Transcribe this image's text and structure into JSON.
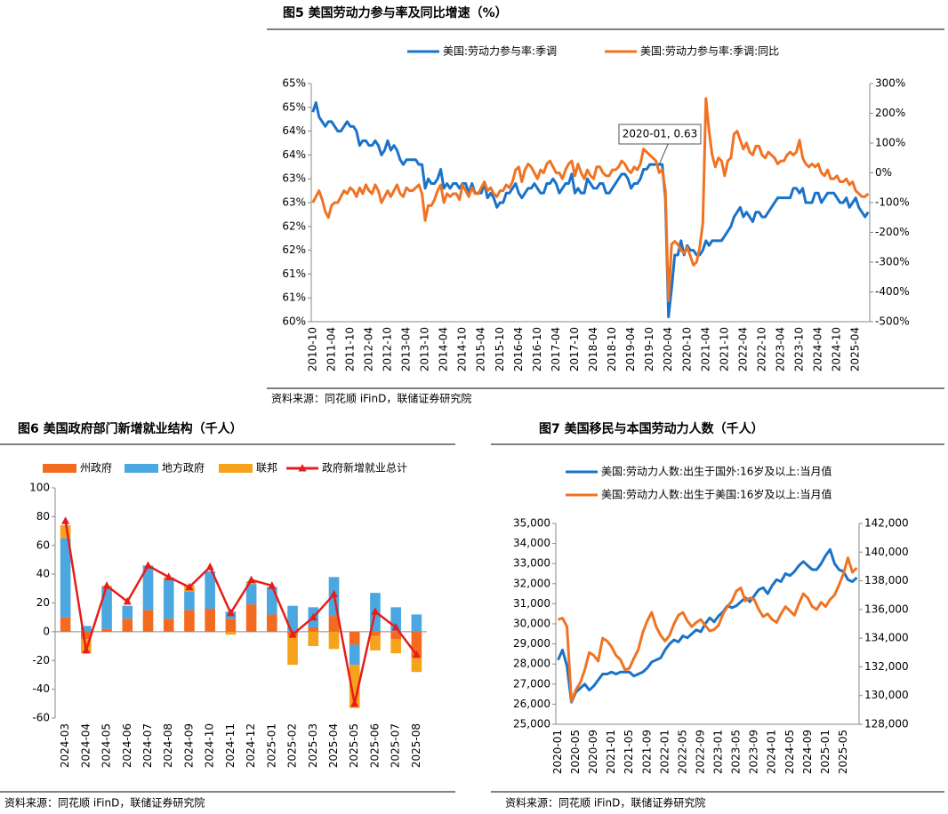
{
  "chart_data": [
    {
      "type": "line",
      "title": "图5  美国劳动力参与率及同比增速（%）",
      "source": "资料来源：同花顺 iFinD，联储证券研究院",
      "annotations": [
        {
          "text": "2020-01, 0.63"
        }
      ],
      "categories": [
        "2010-10",
        null,
        null,
        null,
        null,
        null,
        "2011-04",
        null,
        null,
        null,
        null,
        null,
        "2011-10",
        null,
        null,
        null,
        null,
        null,
        "2012-04",
        null,
        null,
        null,
        null,
        null,
        "2012-10",
        null,
        null,
        null,
        null,
        null,
        "2013-04",
        null,
        null,
        null,
        null,
        null,
        "2013-10",
        null,
        null,
        null,
        null,
        null,
        "2014-04",
        null,
        null,
        null,
        null,
        null,
        "2014-10",
        null,
        null,
        null,
        null,
        null,
        "2015-04",
        null,
        null,
        null,
        null,
        null,
        "2015-10",
        null,
        null,
        null,
        null,
        null,
        "2016-04",
        null,
        null,
        null,
        null,
        null,
        "2016-10",
        null,
        null,
        null,
        null,
        null,
        "2017-04",
        null,
        null,
        null,
        null,
        null,
        "2017-10",
        null,
        null,
        null,
        null,
        null,
        "2018-04",
        null,
        null,
        null,
        null,
        null,
        "2018-10",
        null,
        null,
        null,
        null,
        null,
        "2019-04",
        null,
        null,
        null,
        null,
        null,
        "2019-10",
        null,
        null,
        null,
        null,
        null,
        "2020-04",
        null,
        null,
        null,
        null,
        null,
        "2020-10",
        null,
        null,
        null,
        null,
        null,
        "2021-04",
        null,
        null,
        null,
        null,
        null,
        "2021-10",
        null,
        null,
        null,
        null,
        null,
        "2022-04",
        null,
        null,
        null,
        null,
        null,
        "2022-10",
        null,
        null,
        null,
        null,
        null,
        "2023-04",
        null,
        null,
        null,
        null,
        null,
        "2023-10",
        null,
        null,
        null,
        null,
        null,
        "2024-04",
        null,
        null,
        null,
        null,
        null,
        "2024-10",
        null,
        null,
        null,
        null,
        null,
        "2025-04",
        null,
        null,
        null,
        null
      ],
      "series": [
        {
          "name": "美国:劳动力参与率:季调",
          "color": "#1a73c8",
          "values": [
            64.4,
            64.6,
            64.3,
            64.2,
            64.1,
            64.2,
            64.2,
            64.1,
            64.0,
            64.0,
            64.1,
            64.2,
            64.1,
            64.1,
            64.0,
            63.7,
            63.8,
            63.8,
            63.7,
            63.7,
            63.8,
            63.7,
            63.5,
            63.6,
            63.8,
            63.6,
            63.7,
            63.6,
            63.4,
            63.3,
            63.4,
            63.4,
            63.4,
            63.4,
            63.3,
            63.3,
            62.8,
            63.0,
            62.9,
            62.9,
            63.0,
            63.2,
            62.8,
            62.9,
            62.8,
            62.9,
            62.9,
            62.8,
            62.9,
            62.9,
            62.7,
            62.9,
            62.7,
            62.7,
            62.7,
            62.9,
            62.6,
            62.7,
            62.6,
            62.4,
            62.5,
            62.5,
            62.7,
            62.7,
            62.8,
            62.9,
            62.7,
            62.6,
            62.7,
            62.8,
            62.8,
            62.9,
            62.8,
            62.7,
            62.7,
            62.9,
            62.9,
            63.0,
            62.9,
            62.7,
            62.8,
            62.9,
            62.9,
            63.1,
            62.7,
            62.8,
            62.7,
            62.7,
            63.0,
            62.9,
            62.8,
            62.8,
            62.9,
            62.9,
            62.7,
            62.7,
            62.8,
            62.9,
            63.0,
            63.1,
            63.1,
            63.0,
            62.8,
            62.9,
            62.9,
            63.0,
            63.2,
            63.2,
            63.3,
            63.3,
            63.3,
            63.3,
            63.3,
            62.6,
            60.1,
            60.7,
            61.4,
            61.4,
            61.7,
            61.4,
            61.6,
            61.5,
            61.5,
            61.4,
            61.4,
            61.5,
            61.7,
            61.6,
            61.7,
            61.7,
            61.7,
            61.7,
            61.8,
            61.9,
            62.0,
            62.2,
            62.3,
            62.4,
            62.2,
            62.3,
            62.2,
            62.1,
            62.3,
            62.3,
            62.2,
            62.2,
            62.3,
            62.4,
            62.5,
            62.6,
            62.6,
            62.6,
            62.6,
            62.6,
            62.8,
            62.8,
            62.7,
            62.8,
            62.5,
            62.5,
            62.5,
            62.7,
            62.7,
            62.5,
            62.6,
            62.7,
            62.7,
            62.7,
            62.6,
            62.5,
            62.5,
            62.6,
            62.4,
            62.5,
            62.6,
            62.4,
            62.3,
            62.2,
            62.3
          ]
        },
        {
          "name": "美国:劳动力参与率:季调:同比",
          "color": "#f07323",
          "axis": "y2",
          "values": [
            -100,
            -80,
            -60,
            -90,
            -130,
            -150,
            -110,
            -100,
            -100,
            -80,
            -60,
            -70,
            -50,
            -60,
            -80,
            -50,
            -70,
            -40,
            -60,
            -70,
            -40,
            -60,
            -100,
            -80,
            -60,
            -80,
            -60,
            -40,
            -70,
            -80,
            -50,
            -60,
            -60,
            -50,
            -40,
            -70,
            -160,
            -110,
            -110,
            -90,
            -60,
            -40,
            -100,
            -70,
            -80,
            -70,
            -70,
            -90,
            -40,
            -60,
            -80,
            -50,
            -70,
            -70,
            -50,
            -30,
            -60,
            -50,
            -70,
            -80,
            -60,
            -60,
            -40,
            -50,
            -30,
            10,
            20,
            -30,
            10,
            30,
            20,
            0,
            -20,
            10,
            0,
            30,
            40,
            20,
            0,
            0,
            -20,
            10,
            30,
            40,
            -10,
            30,
            0,
            -20,
            10,
            -10,
            -20,
            20,
            20,
            0,
            -10,
            -10,
            10,
            10,
            20,
            40,
            30,
            10,
            0,
            20,
            10,
            30,
            80,
            70,
            60,
            50,
            40,
            0.63,
            10,
            -60,
            -430,
            -240,
            -230,
            -240,
            -260,
            -270,
            -250,
            -280,
            -310,
            -300,
            -250,
            -170,
            250,
            140,
            60,
            20,
            50,
            40,
            -10,
            40,
            50,
            130,
            140,
            110,
            80,
            100,
            70,
            60,
            90,
            90,
            60,
            50,
            70,
            60,
            50,
            30,
            40,
            40,
            60,
            70,
            60,
            70,
            110,
            50,
            30,
            20,
            30,
            20,
            30,
            0,
            -10,
            10,
            -20,
            -20,
            -10,
            -30,
            -30,
            -20,
            -40,
            -30,
            -60,
            -70,
            -80,
            -80,
            -70
          ]
        }
      ],
      "ylim": [
        60,
        65
      ],
      "yticks": [
        {
          "value": 60,
          "label": "60%"
        },
        {
          "value": 60.5,
          "label": "61%"
        },
        {
          "value": 61,
          "label": "61%"
        },
        {
          "value": 61.5,
          "label": "62%"
        },
        {
          "value": 62,
          "label": "62%"
        },
        {
          "value": 62.5,
          "label": "63%"
        },
        {
          "value": 63,
          "label": "63%"
        },
        {
          "value": 63.5,
          "label": "64%"
        },
        {
          "value": 64,
          "label": "64%"
        },
        {
          "value": 64.5,
          "label": "65%"
        },
        {
          "value": 65,
          "label": "65%"
        }
      ],
      "y2lim": [
        -500,
        300
      ],
      "y2ticks": [
        {
          "value": -500,
          "label": "-500%"
        },
        {
          "value": -400,
          "label": "-400%"
        },
        {
          "value": -300,
          "label": "-300%"
        },
        {
          "value": -200,
          "label": "-200%"
        },
        {
          "value": -100,
          "label": "-100%"
        },
        {
          "value": 0,
          "label": "0%"
        },
        {
          "value": 100,
          "label": "100%"
        },
        {
          "value": 200,
          "label": "200%"
        },
        {
          "value": 300,
          "label": "300%"
        }
      ],
      "grid": false
    },
    {
      "type": "bar",
      "stacked": true,
      "title": "图6  美国政府部门新增就业结构（千人）",
      "source": "资料来源：同花顺 iFinD，联储证券研究院",
      "categories": [
        "2024-03",
        "2024-04",
        "2024-05",
        "2024-06",
        "2024-07",
        "2024-08",
        "2024-09",
        "2024-10",
        "2024-11",
        "2024-12",
        "2025-01",
        "2025-02",
        "2025-03",
        "2025-04",
        "2025-05",
        "2025-06",
        "2025-07",
        "2025-08"
      ],
      "series": [
        {
          "name": "州政府",
          "color": "#f26b21",
          "values": [
            10,
            -5,
            2,
            9,
            15,
            9,
            15,
            16,
            9,
            19,
            12,
            -3,
            3,
            11,
            -9,
            -3,
            -5,
            -18
          ]
        },
        {
          "name": "地方政府",
          "color": "#4aa7e0",
          "values": [
            55,
            4,
            29,
            9,
            31,
            27,
            13,
            26,
            5,
            14,
            19,
            18,
            14,
            27,
            -14,
            27,
            17,
            12
          ]
        },
        {
          "name": "联邦",
          "color": "#f7a21b",
          "values": [
            9,
            -10,
            1,
            0,
            0,
            2,
            4,
            0,
            -2,
            2,
            0,
            -20,
            -10,
            -12,
            -30,
            -10,
            -10,
            -10
          ]
        },
        {
          "name": "政府新增就业总计",
          "color": "#e81c1c",
          "type": "line",
          "marker": "triangle",
          "values": [
            77,
            -13,
            32,
            21,
            46,
            38,
            31,
            45,
            13,
            36,
            32,
            -2,
            10,
            26,
            -50,
            14,
            3,
            -16
          ]
        }
      ],
      "ylim": [
        -60,
        100
      ],
      "yticks": [
        -60,
        -40,
        -20,
        0,
        20,
        40,
        60,
        80,
        100
      ],
      "grid": false
    },
    {
      "type": "line",
      "title": "图7  美国移民与本国劳动力人数（千人）",
      "source": "资料来源：同花顺 iFinD，联储证券研究院",
      "categories": [
        "2020-01",
        null,
        null,
        null,
        "2020-05",
        null,
        null,
        null,
        "2020-09",
        null,
        null,
        null,
        "2021-01",
        null,
        null,
        null,
        "2021-05",
        null,
        null,
        null,
        "2021-09",
        null,
        null,
        null,
        "2022-01",
        null,
        null,
        null,
        "2022-05",
        null,
        null,
        null,
        "2022-09",
        null,
        null,
        null,
        "2023-01",
        null,
        null,
        null,
        "2023-05",
        null,
        null,
        null,
        "2023-09",
        null,
        null,
        null,
        "2024-01",
        null,
        null,
        null,
        "2024-05",
        null,
        null,
        null,
        "2024-09",
        null,
        null,
        null,
        "2025-01",
        null,
        null,
        null,
        "2025-05",
        null,
        null,
        null
      ],
      "series": [
        {
          "name": "美国:劳动力人数:出生于国外:16岁及以上:当月值",
          "color": "#1a73c8",
          "values": [
            28200,
            28700,
            27900,
            26100,
            26600,
            26800,
            27000,
            26700,
            26900,
            27200,
            27500,
            27500,
            27600,
            27500,
            27600,
            27600,
            27600,
            27400,
            27500,
            27600,
            27800,
            28100,
            28200,
            28300,
            28700,
            29000,
            29200,
            29100,
            29400,
            29300,
            29500,
            29700,
            29600,
            30000,
            30300,
            30100,
            30400,
            30600,
            30900,
            30800,
            30900,
            31100,
            31300,
            31100,
            31400,
            31700,
            31800,
            31500,
            31900,
            32200,
            32100,
            32500,
            32400,
            32600,
            32900,
            33100,
            32900,
            32700,
            32700,
            33000,
            33400,
            33700,
            33000,
            32700,
            32600,
            32200,
            32100,
            32300
          ]
        },
        {
          "name": "美国:劳动力人数:出生于美国:16岁及以上:当月值",
          "color": "#f07323",
          "axis": "y2",
          "values": [
            135300,
            135400,
            134800,
            129600,
            130400,
            130900,
            131800,
            133000,
            132800,
            132400,
            134000,
            133800,
            133400,
            132800,
            132500,
            131800,
            131900,
            132600,
            133200,
            134400,
            135200,
            135800,
            134800,
            134200,
            133800,
            134200,
            135000,
            135600,
            135800,
            135200,
            134800,
            135100,
            135300,
            134900,
            134500,
            134600,
            134900,
            135700,
            136200,
            136600,
            137300,
            137500,
            136600,
            136800,
            136700,
            136000,
            135500,
            135700,
            135300,
            135100,
            135700,
            136200,
            135900,
            135600,
            136400,
            137100,
            136800,
            136200,
            136000,
            136500,
            136200,
            136700,
            137000,
            137700,
            138500,
            139600,
            138600,
            138900
          ]
        }
      ],
      "ylim": [
        25000,
        35000
      ],
      "yticks": [
        {
          "value": 25000,
          "label": "25,000"
        },
        {
          "value": 26000,
          "label": "26,000"
        },
        {
          "value": 27000,
          "label": "27,000"
        },
        {
          "value": 28000,
          "label": "28,000"
        },
        {
          "value": 29000,
          "label": "29,000"
        },
        {
          "value": 30000,
          "label": "30,000"
        },
        {
          "value": 31000,
          "label": "31,000"
        },
        {
          "value": 32000,
          "label": "32,000"
        },
        {
          "value": 33000,
          "label": "33,000"
        },
        {
          "value": 34000,
          "label": "34,000"
        },
        {
          "value": 35000,
          "label": "35,000"
        }
      ],
      "y2lim": [
        128000,
        142000
      ],
      "y2ticks": [
        {
          "value": 128000,
          "label": "128,000"
        },
        {
          "value": 130000,
          "label": "130,000"
        },
        {
          "value": 132000,
          "label": "132,000"
        },
        {
          "value": 134000,
          "label": "134,000"
        },
        {
          "value": 136000,
          "label": "136,000"
        },
        {
          "value": 138000,
          "label": "138,000"
        },
        {
          "value": 140000,
          "label": "140,000"
        },
        {
          "value": 142000,
          "label": "142,000"
        }
      ],
      "grid": false
    }
  ]
}
